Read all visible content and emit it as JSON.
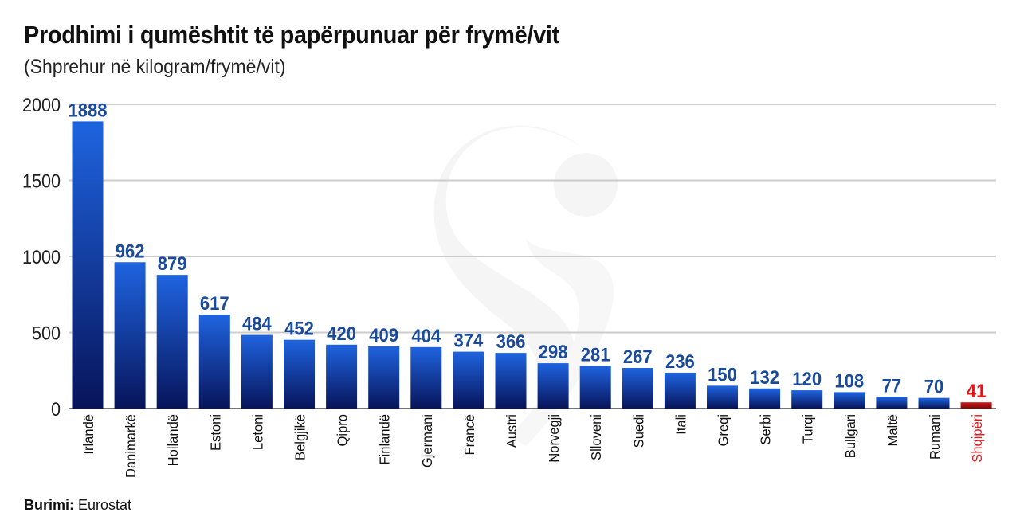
{
  "header": {
    "title": "Prodhimi i qumështit të papërpunuar për frymë/vit",
    "subtitle": "(Shprehur në kilogram/frymë/vit)"
  },
  "source": {
    "label": "Burimi:",
    "text": "Eurostat"
  },
  "colors": {
    "bar_top": "#1f64e0",
    "bar_bottom": "#07145a",
    "value_label": "#1a4b9a",
    "highlight_bar": "#b01010",
    "highlight_label": "#e0161b",
    "grid": "#cccccc",
    "watermark": "#ececec"
  },
  "watermark": {
    "icon": "stylized-s-logo-watermark"
  },
  "chart_data": {
    "type": "bar",
    "title": "Prodhimi i qumështit të papërpunuar për frymë/vit",
    "subtitle": "(Shprehur në kilogram/frymë/vit)",
    "xlabel": "",
    "ylabel": "",
    "ylim": [
      0,
      2000
    ],
    "yticks": [
      0,
      500,
      1000,
      1500,
      2000
    ],
    "grid": true,
    "highlight": "Shqipëri",
    "categories": [
      "Irlandë",
      "Danimarkë",
      "Hollandë",
      "Estoni",
      "Letoni",
      "Belgjikë",
      "Qipro",
      "Finlandë",
      "Gjermani",
      "Francë",
      "Austri",
      "Norvegji",
      "Slloveni",
      "Suedi",
      "Itali",
      "Greqi",
      "Serbi",
      "Turqi",
      "Bullgari",
      "Maltë",
      "Rumani",
      "Shqipëri"
    ],
    "values": [
      1888,
      962,
      879,
      617,
      484,
      452,
      420,
      409,
      404,
      374,
      366,
      298,
      281,
      267,
      236,
      150,
      132,
      120,
      108,
      77,
      70,
      41
    ]
  }
}
